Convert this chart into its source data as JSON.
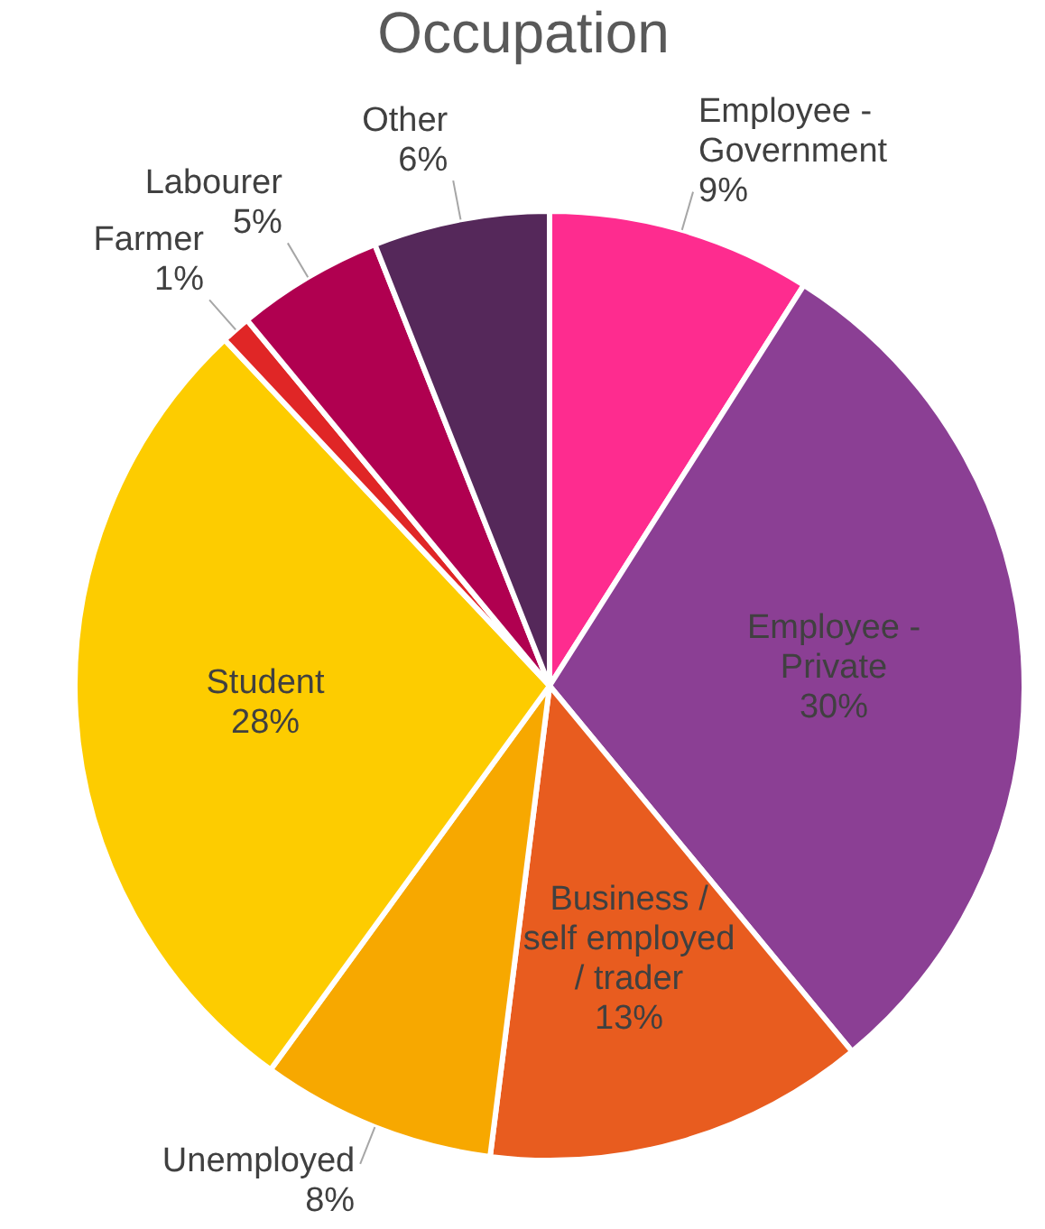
{
  "chart_data": {
    "type": "pie",
    "title": "Occupation",
    "categories": [
      "Employee - Government",
      "Employee - Private",
      "Business / self employed / trader",
      "Unemployed",
      "Student",
      "Farmer",
      "Labourer",
      "Other"
    ],
    "values": [
      9,
      30,
      13,
      8,
      28,
      1,
      5,
      6
    ],
    "colors": [
      "#fe2c8f",
      "#8b3f94",
      "#e85c1f",
      "#f7a800",
      "#fdcc00",
      "#e02626",
      "#b00050",
      "#55285a"
    ],
    "value_labels": [
      "9%",
      "30%",
      "13%",
      "8%",
      "28%",
      "1%",
      "5%",
      "6%"
    ],
    "legend": false
  }
}
